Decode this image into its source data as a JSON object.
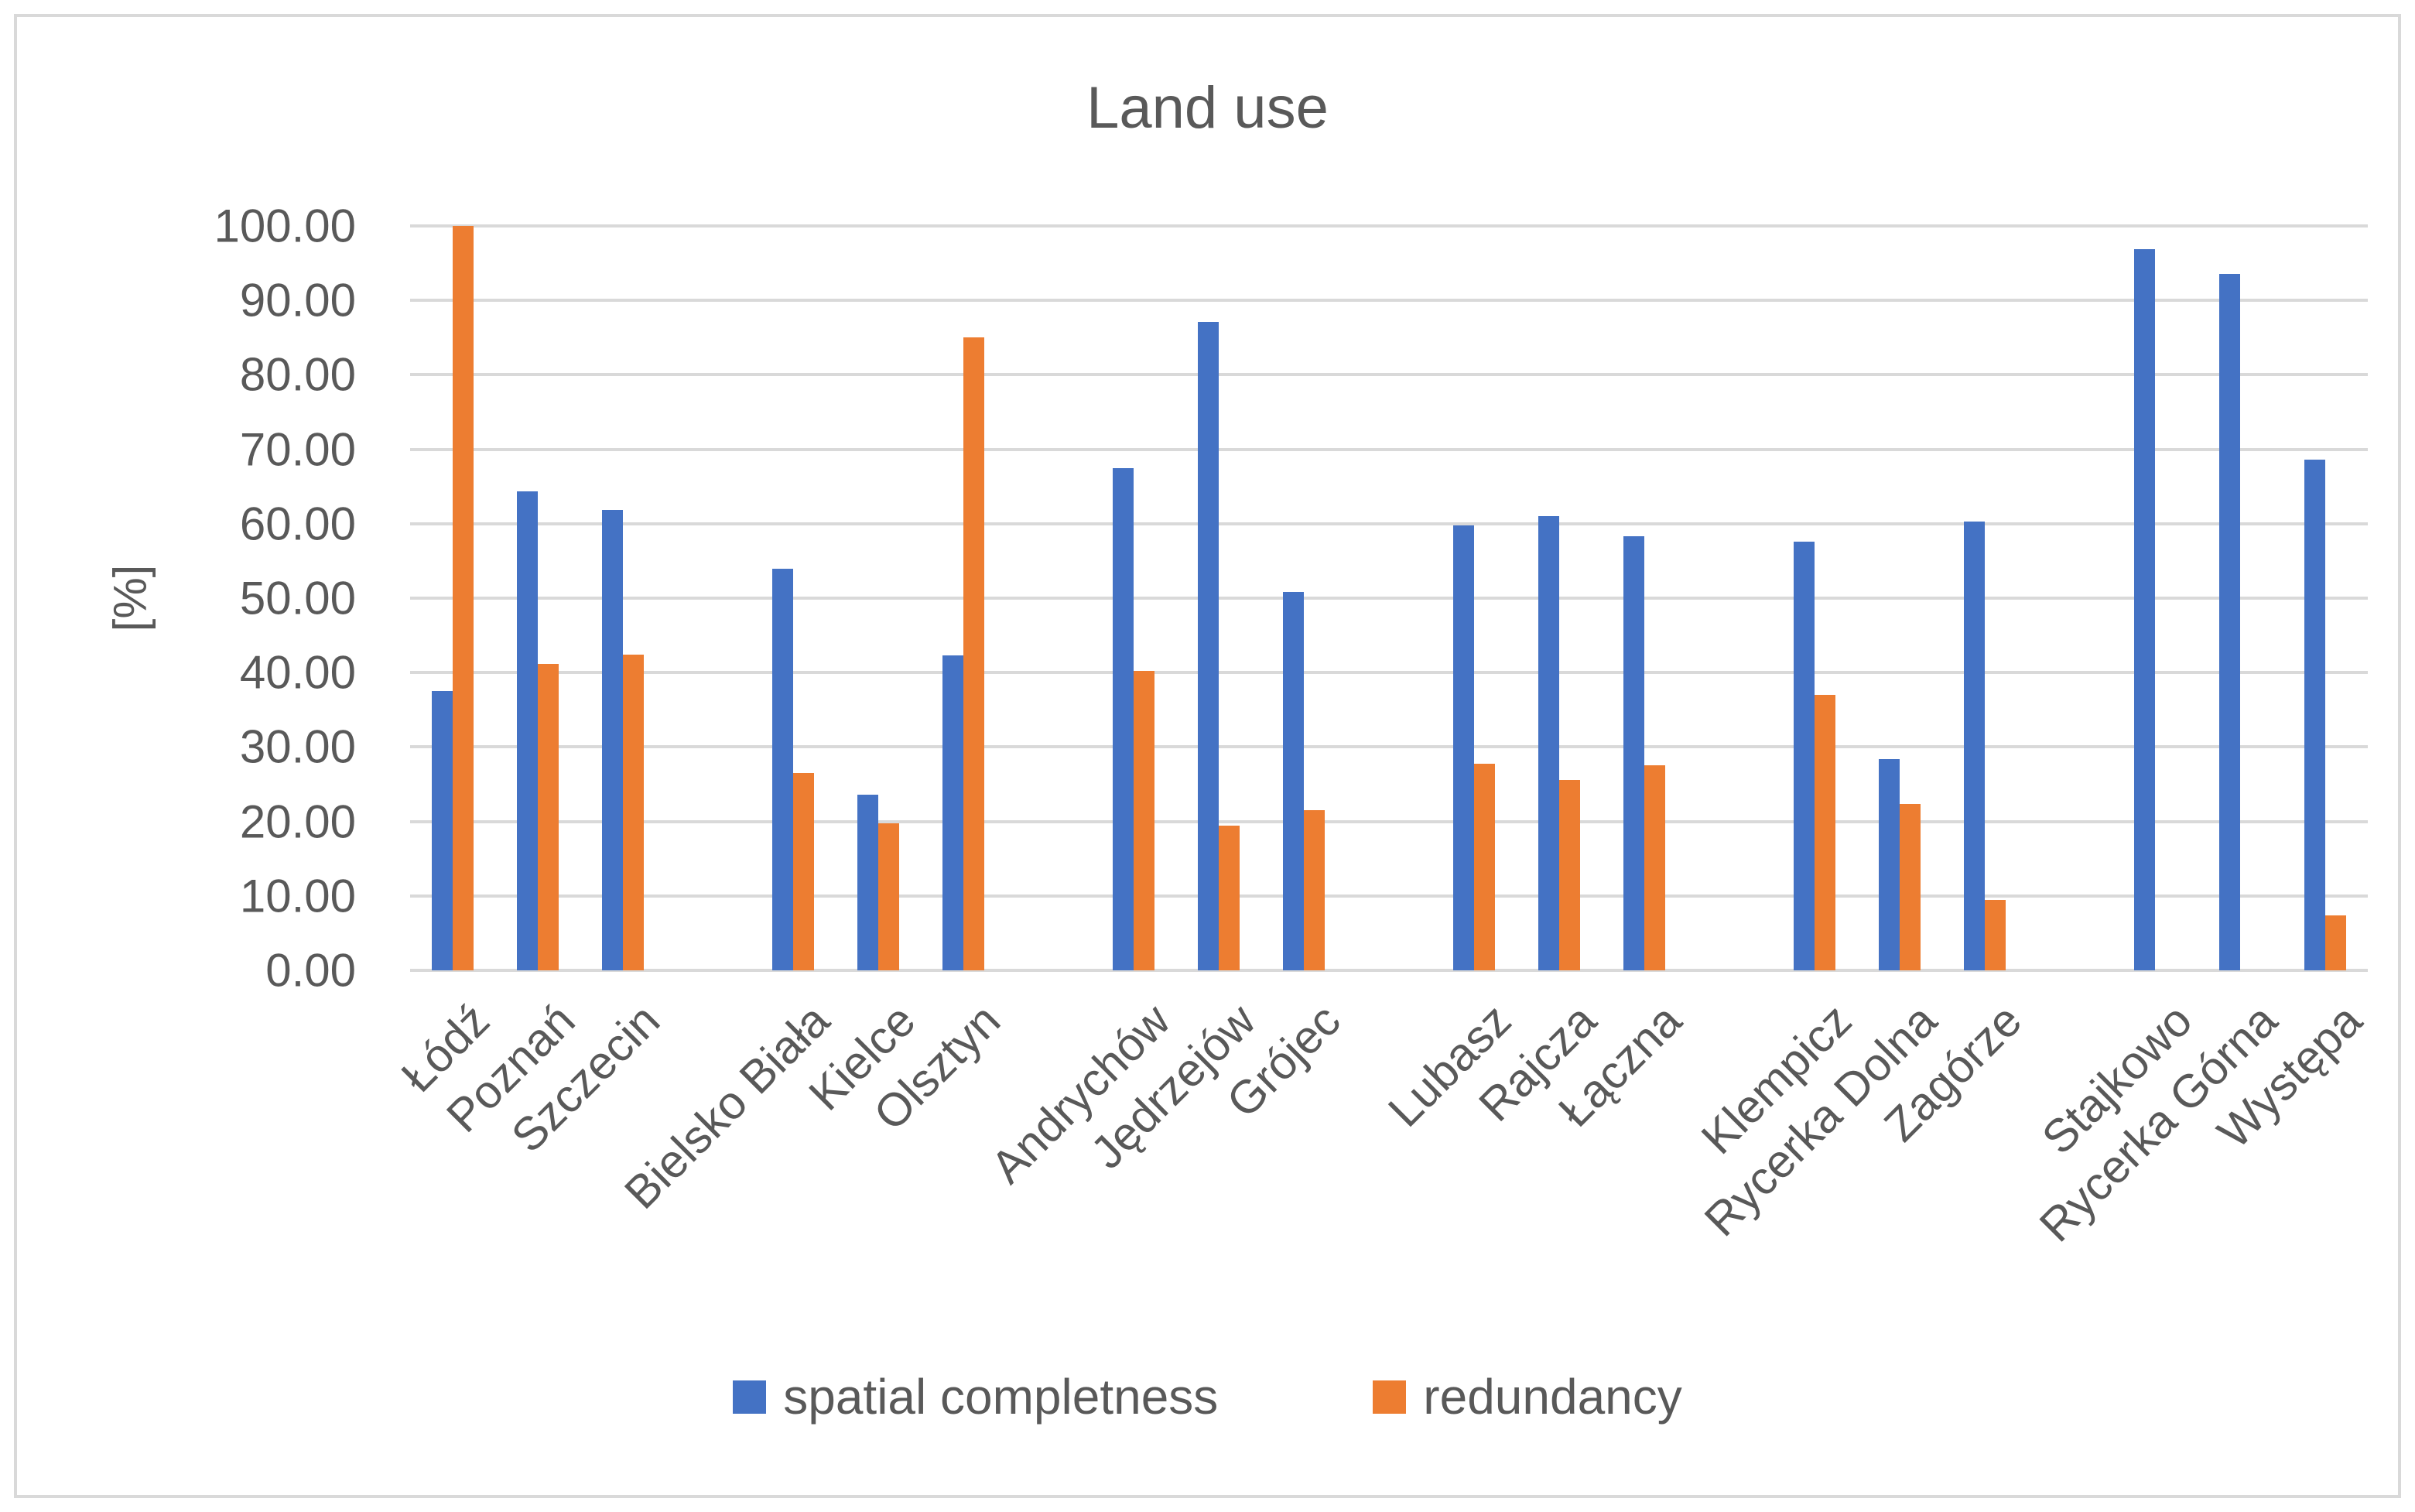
{
  "title": "Land use",
  "y_axis": {
    "title": "[%]",
    "tick_labels": [
      "100.00",
      "90.00",
      "80.00",
      "70.00",
      "60.00",
      "50.00",
      "40.00",
      "30.00",
      "20.00",
      "10.00",
      "0.00"
    ]
  },
  "legend": {
    "items": [
      {
        "label": "spatial completness",
        "color": "#4472C4"
      },
      {
        "label": "redundancy",
        "color": "#ED7D31"
      }
    ]
  },
  "colors": {
    "series_blue": "#4472C4",
    "series_orange": "#ED7D31",
    "gridline": "#D9D9D9",
    "text": "#595959",
    "frame_border": "#D9D9D9"
  },
  "chart_data": {
    "type": "bar",
    "title": "Land use",
    "ylabel": "[%]",
    "ylim": [
      0,
      100
    ],
    "y_tick_step": 10,
    "grid": true,
    "legend_position": "bottom",
    "categories": [
      "Łódź",
      "Poznań",
      "Szczecin",
      "Bielsko Biała",
      "Kielce",
      "Olsztyn",
      "Andrychów",
      "Jędrzejów",
      "Grójec",
      "Lubasz",
      "Rajcza",
      "Łączna",
      "Klempicz",
      "Rycerka Dolna",
      "Zagórze",
      "Stajkowo",
      "Rycerka Górna",
      "Występa"
    ],
    "category_groups": [
      [
        "Łódź",
        "Poznań",
        "Szczecin"
      ],
      [
        "Bielsko Biała",
        "Kielce",
        "Olsztyn"
      ],
      [
        "Andrychów",
        "Jędrzejów",
        "Grójec"
      ],
      [
        "Lubasz",
        "Rajcza",
        "Łączna"
      ],
      [
        "Klempicz",
        "Rycerka Dolna",
        "Zagórze"
      ],
      [
        "Stajkowo",
        "Rycerka Górna",
        "Występa"
      ]
    ],
    "series": [
      {
        "name": "spatial completness",
        "color": "#4472C4",
        "values": [
          37.5,
          64.3,
          61.9,
          54.0,
          23.6,
          42.3,
          67.5,
          87.1,
          50.8,
          59.8,
          61.0,
          58.3,
          57.6,
          28.4,
          60.3,
          96.9,
          93.6,
          68.6
        ]
      },
      {
        "name": "redundancy",
        "color": "#ED7D31",
        "values": [
          100.0,
          41.2,
          42.4,
          26.5,
          19.8,
          85.0,
          40.2,
          19.4,
          21.5,
          27.8,
          25.6,
          27.6,
          37.0,
          22.3,
          9.5,
          0,
          0,
          7.4
        ]
      }
    ]
  }
}
